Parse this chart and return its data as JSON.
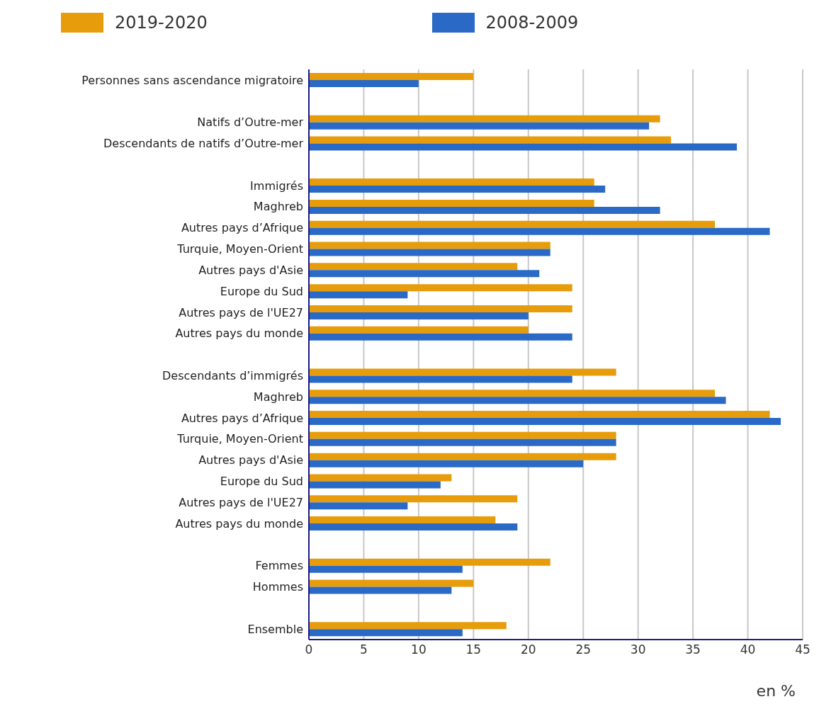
{
  "chart_data": {
    "type": "bar",
    "orientation": "horizontal",
    "xlabel": "en %",
    "categories": [
      "Personnes sans ascendance migratoire",
      null,
      "Natifs d’Outre-mer",
      "Descendants de natifs d’Outre-mer",
      null,
      "Immigrés",
      "Maghreb",
      "Autres pays d’Afrique",
      "Turquie, Moyen-Orient",
      "Autres pays d'Asie",
      "Europe du Sud",
      "Autres pays de l'UE27",
      "Autres pays du monde",
      null,
      "Descendants d’immigrés",
      "Maghreb",
      "Autres pays d’Afrique",
      "Turquie, Moyen-Orient",
      "Autres pays d'Asie",
      "Europe du Sud",
      "Autres pays de l'UE27",
      "Autres pays du monde",
      null,
      "Femmes",
      "Hommes",
      null,
      "Ensemble"
    ],
    "series": [
      {
        "name": "2019-2020",
        "color": "#e69c0b",
        "values": [
          15,
          null,
          32,
          33,
          null,
          26,
          26,
          37,
          22,
          19,
          24,
          24,
          20,
          null,
          28,
          37,
          42,
          28,
          28,
          13,
          19,
          17,
          null,
          22,
          15,
          null,
          18
        ]
      },
      {
        "name": "2008-2009",
        "color": "#2a6ac6",
        "values": [
          10,
          null,
          31,
          39,
          null,
          27,
          32,
          42,
          22,
          21,
          9,
          20,
          24,
          null,
          24,
          38,
          43,
          28,
          25,
          12,
          9,
          19,
          null,
          14,
          13,
          null,
          14
        ]
      }
    ],
    "xlim": [
      0,
      45
    ],
    "xticks": [
      0,
      5,
      10,
      15,
      20,
      25,
      30,
      35,
      40,
      45
    ],
    "grid": "x",
    "legend": "top left"
  }
}
